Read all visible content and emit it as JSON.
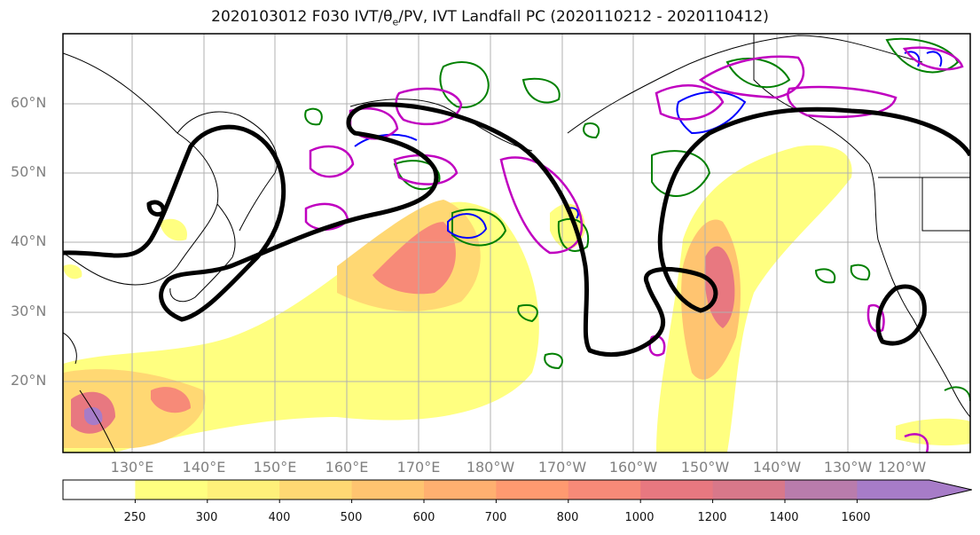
{
  "title": {
    "prefix": "2020103012 F030 IVT/",
    "theta": "θ",
    "theta_sub": "e",
    "suffix": "/PV, IVT Landfall PC (2020110212 - 2020110412)"
  },
  "lat_labels": [
    "60°N",
    "50°N",
    "40°N",
    "30°N",
    "20°N"
  ],
  "lon_labels": [
    "130°E",
    "140°E",
    "150°E",
    "160°E",
    "170°E",
    "180°W",
    "170°W",
    "160°W",
    "150°W",
    "140°W",
    "130°W",
    "120°W"
  ],
  "colorbar": {
    "ticks": [
      "250",
      "300",
      "400",
      "500",
      "600",
      "700",
      "800",
      "1000",
      "1200",
      "1400",
      "1600"
    ],
    "colors": [
      "#ffffff",
      "#ffff80",
      "#fff07a",
      "#ffd873",
      "#ffc470",
      "#ffb070",
      "#ff9a70",
      "#f78a78",
      "#e87880",
      "#d8788a",
      "#b97cac",
      "#a77cc8"
    ]
  },
  "colors": {
    "trough_contour": "#000000",
    "theta_e_contour": "#008000",
    "pv_contour": "#0000ff",
    "landfall_pc_contour": "#c000c0"
  }
}
